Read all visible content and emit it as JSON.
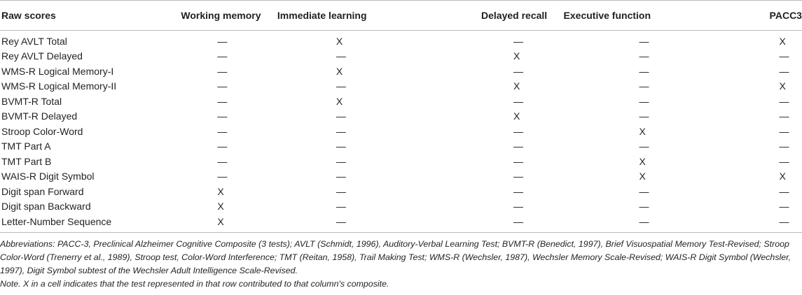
{
  "table": {
    "columns": [
      "Raw scores",
      "Working memory",
      "Immediate learning",
      "Delayed recall",
      "Executive function",
      "PACC3"
    ],
    "rows": [
      {
        "name": "Rey AVLT Total",
        "cells": [
          "—",
          "X",
          "—",
          "—",
          "X"
        ]
      },
      {
        "name": "Rey AVLT Delayed",
        "cells": [
          "—",
          "—",
          "X",
          "—",
          "—"
        ]
      },
      {
        "name": "WMS-R Logical Memory-I",
        "cells": [
          "—",
          "X",
          "—",
          "—",
          "—"
        ]
      },
      {
        "name": "WMS-R Logical Memory-II",
        "cells": [
          "—",
          "—",
          "X",
          "—",
          "X"
        ]
      },
      {
        "name": "BVMT-R Total",
        "cells": [
          "—",
          "X",
          "—",
          "—",
          "—"
        ]
      },
      {
        "name": "BVMT-R Delayed",
        "cells": [
          "—",
          "—",
          "X",
          "—",
          "—"
        ]
      },
      {
        "name": "Stroop Color-Word",
        "cells": [
          "—",
          "—",
          "—",
          "X",
          "—"
        ]
      },
      {
        "name": "TMT Part A",
        "cells": [
          "—",
          "—",
          "—",
          "—",
          "—"
        ]
      },
      {
        "name": "TMT Part B",
        "cells": [
          "—",
          "—",
          "—",
          "X",
          "—"
        ]
      },
      {
        "name": "WAIS-R Digit Symbol",
        "cells": [
          "—",
          "—",
          "—",
          "X",
          "X"
        ]
      },
      {
        "name": "Digit span Forward",
        "cells": [
          "X",
          "—",
          "—",
          "—",
          "—"
        ]
      },
      {
        "name": "Digit span Backward",
        "cells": [
          "X",
          "—",
          "—",
          "—",
          "—"
        ]
      },
      {
        "name": "Letter-Number Sequence",
        "cells": [
          "X",
          "—",
          "—",
          "—",
          "—"
        ]
      }
    ]
  },
  "footnotes": {
    "abbreviations": "Abbreviations: PACC-3, Preclinical Alzheimer Cognitive Composite (3 tests); AVLT (Schmidt, 1996), Auditory-Verbal Learning Test; BVMT-R (Benedict, 1997), Brief Visuospatial Memory Test-Revised; Stroop Color-Word (Trenerry et al., 1989), Stroop test, Color-Word Interference; TMT (Reitan, 1958), Trail Making Test; WMS-R (Wechsler, 1987), Wechsler Memory Scale-Revised; WAIS-R Digit Symbol (Wechsler, 1997), Digit Symbol subtest of the Wechsler Adult Intelligence Scale-Revised.",
    "note": "Note. X in a cell indicates that the test represented in that row contributed to that column's composite."
  }
}
